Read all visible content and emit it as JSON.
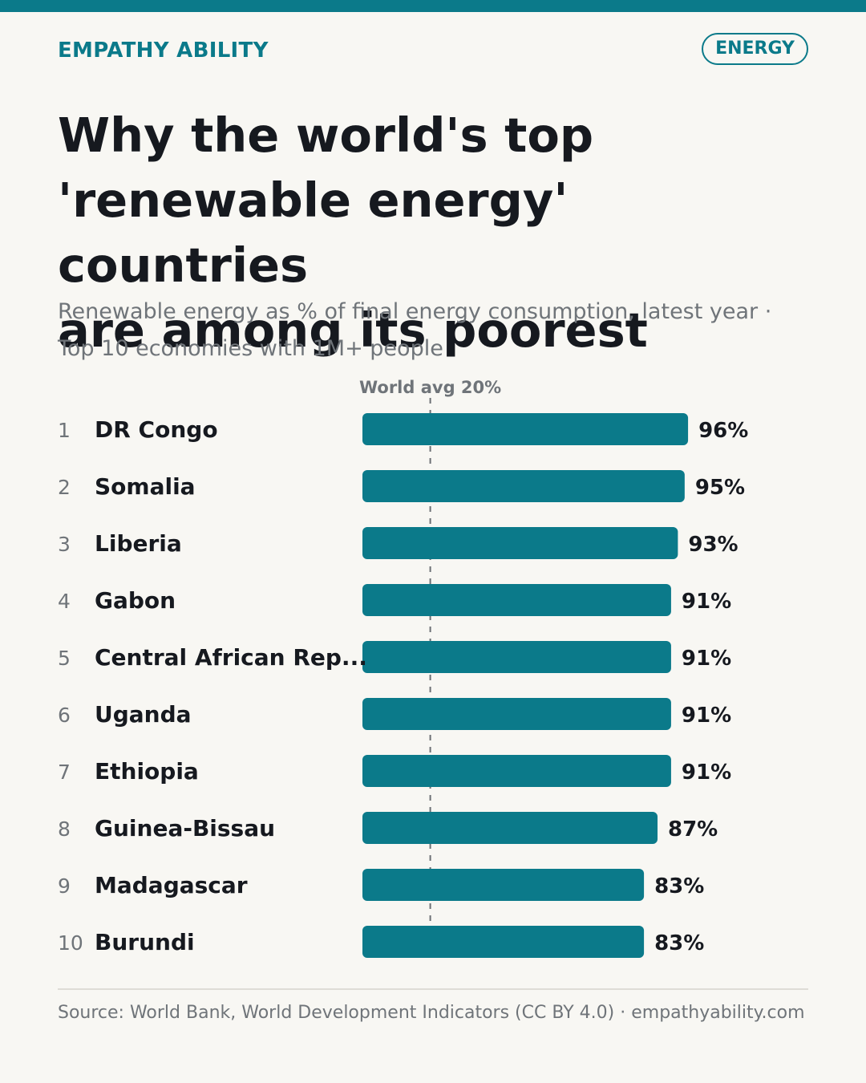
{
  "header": {
    "brand": "EMPATHY ABILITY",
    "tag": "ENERGY"
  },
  "title_lines": [
    "Why the world's top",
    "'renewable energy' countries",
    "are among its poorest"
  ],
  "subtitle_lines": [
    "Renewable energy as % of final energy consumption, latest year ·",
    "Top 10 economies with 1M+ people"
  ],
  "footer": {
    "source": "Source: World Bank, World Development Indicators (CC BY 4.0) · empathyability.com"
  },
  "colors": {
    "accent": "#0b7a8a",
    "bar": "#0b7a8a",
    "text": "#16191f",
    "muted": "#6f7479",
    "background": "#f8f7f3"
  },
  "chart_data": {
    "type": "bar",
    "orientation": "horizontal",
    "categories": [
      "DR Congo",
      "Somalia",
      "Liberia",
      "Gabon",
      "Central African Rep...",
      "Uganda",
      "Ethiopia",
      "Guinea-Bissau",
      "Madagascar",
      "Burundi"
    ],
    "ranks": [
      "1",
      "2",
      "3",
      "4",
      "5",
      "6",
      "7",
      "8",
      "9",
      "10"
    ],
    "values": [
      96,
      95,
      93,
      91,
      91,
      91,
      91,
      87,
      83,
      83
    ],
    "value_labels": [
      "96%",
      "95%",
      "93%",
      "91%",
      "91%",
      "91%",
      "91%",
      "87%",
      "83%",
      "83%"
    ],
    "unit": "%",
    "xlim": [
      0,
      100
    ],
    "reference_line": {
      "value": 20,
      "label": "World avg 20%"
    },
    "grid": false,
    "legend": "none"
  }
}
